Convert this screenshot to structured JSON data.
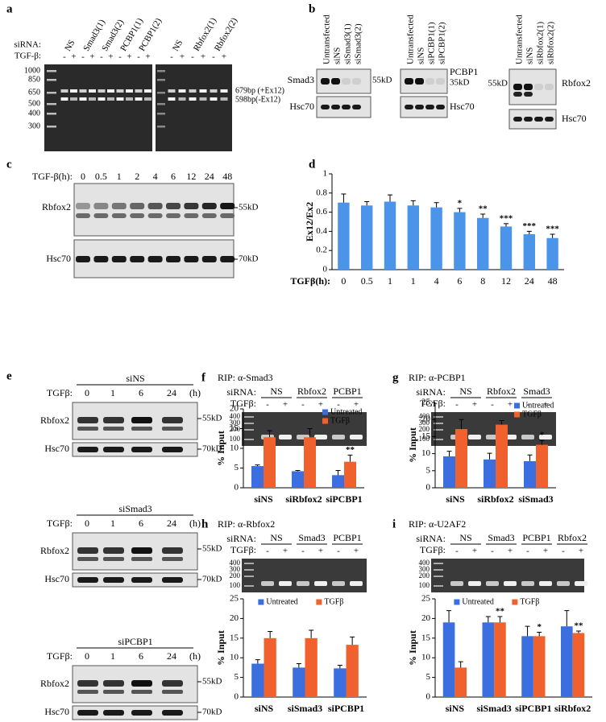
{
  "panels": {
    "a": {
      "letter": "a",
      "sirna": "siRNA:",
      "tgf": "TGF-β:",
      "lanes": [
        "NS",
        "Smad3(1)",
        "Smad3(2)",
        "PCBP1(1)",
        "PCBP1(2)",
        "NS",
        "Rbfox2(1)",
        "Rbfox2(2)"
      ],
      "signs": [
        "-",
        "+",
        "-",
        "+",
        "-",
        "+",
        "-",
        "+",
        "-",
        "+",
        "-",
        "+",
        "-",
        "+",
        "-",
        "+"
      ],
      "ladder": [
        "1000",
        "850",
        "650",
        "500",
        "400",
        "300"
      ],
      "bands": [
        "679bp (+Ex12)",
        "598bp(-Ex12)"
      ]
    },
    "b": {
      "letter": "b",
      "groups": [
        {
          "lanes": [
            "Untransfected",
            "siNS",
            "siSmad3(1)",
            "siSmad3(2)"
          ],
          "target": "Smad3",
          "size": "55kD",
          "control": "Hsc70"
        },
        {
          "lanes": [
            "Untransfected",
            "siNS",
            "siPCBP1(1)",
            "siPCBP1(2)"
          ],
          "target": "PCBP1",
          "size": "35kD",
          "control": "Hsc70"
        },
        {
          "lanes": [
            "Untransfected",
            "siNS",
            "siRbfox2(1)",
            "siRbfox2(2)"
          ],
          "target": "Rbfox2",
          "size": "55kD",
          "control": "Hsc70"
        }
      ]
    },
    "c": {
      "letter": "c",
      "tgf": "TGF-β(h):",
      "times": [
        "0",
        "0.5",
        "1",
        "2",
        "4",
        "6",
        "12",
        "24",
        "48"
      ],
      "target": "Rbfox2",
      "size": "55kD",
      "control": "Hsc70",
      "control_size": "70kD"
    },
    "d": {
      "letter": "d"
    },
    "e": {
      "letter": "e",
      "blocks": [
        {
          "sirna": "siNS",
          "tgf": "TGFβ:",
          "times": [
            "0",
            "1",
            "6",
            "24"
          ],
          "unit": "(h)",
          "target": "Rbfox2",
          "size": "55kD",
          "control": "Hsc70",
          "control_size": "70kD"
        },
        {
          "sirna": "siSmad3",
          "tgf": "TGFβ:",
          "times": [
            "0",
            "1",
            "6",
            "24"
          ],
          "unit": "(h)",
          "target": "Rbfox2",
          "size": "55kD",
          "control": "Hsc70",
          "control_size": "70kD"
        },
        {
          "sirna": "siPCBP1",
          "tgf": "TGFβ:",
          "times": [
            "0",
            "1",
            "6",
            "24"
          ],
          "unit": "(h)",
          "target": "Rbfox2",
          "size": "55kD",
          "control": "Hsc70",
          "control_size": "70kD"
        }
      ]
    },
    "f": {
      "letter": "f",
      "title": "RIP: α-Smad3",
      "sirna": "siRNA:",
      "groups": [
        "NS",
        "Rbfox2",
        "PCBP1"
      ],
      "tgf": "TGFβ:",
      "signs": [
        "-",
        "+",
        "-",
        "+",
        "-",
        "+"
      ],
      "ladder": [
        "400",
        "300",
        "200",
        "100"
      ]
    },
    "g": {
      "letter": "g",
      "title": "RIP: α-PCBP1",
      "sirna": "siRNA:",
      "groups": [
        "NS",
        "Rbfox2",
        "Smad3"
      ],
      "tgf": "TGFβ:",
      "signs": [
        "-",
        "+",
        "-",
        "+",
        "-",
        "+"
      ],
      "ladder": [
        "400",
        "300",
        "200",
        "100"
      ]
    },
    "h": {
      "letter": "h",
      "title": "RIP: α-Rbfox2",
      "sirna": "siRNA:",
      "groups": [
        "NS",
        "Smad3",
        "PCBP1"
      ],
      "tgf": "TGFβ:",
      "signs": [
        "-",
        "+",
        "-",
        "+",
        "-",
        "+"
      ],
      "ladder": [
        "400",
        "300",
        "200",
        "100"
      ]
    },
    "i": {
      "letter": "i",
      "title": "RIP: α-U2AF2",
      "sirna": "siRNA:",
      "groups": [
        "NS",
        "Smad3",
        "PCBP1",
        "Rbfox2"
      ],
      "tgf": "TGFβ:",
      "signs": [
        "-",
        "+",
        "-",
        "+",
        "-",
        "+",
        "-",
        "+"
      ],
      "ladder": [
        "400",
        "300",
        "200",
        "100"
      ]
    }
  },
  "chart_data": [
    {
      "type": "bar",
      "ylabel": "Ex12/Ex2",
      "xlabel": "TGFβ(h):",
      "categories": [
        "0",
        "0.5",
        "1",
        "1",
        "4",
        "6",
        "8",
        "12",
        "24",
        "48"
      ],
      "series": [
        {
          "color": "#4a95ea",
          "values": [
            0.7,
            0.67,
            0.71,
            0.67,
            0.65,
            0.6,
            0.54,
            0.45,
            0.37,
            0.33
          ],
          "errors": [
            0.09,
            0.04,
            0.07,
            0.05,
            0.05,
            0.04,
            0.04,
            0.03,
            0.03,
            0.04
          ],
          "significance": [
            null,
            null,
            null,
            null,
            null,
            "*",
            "**",
            "***",
            "***",
            "***"
          ]
        }
      ],
      "ylim": [
        0,
        1
      ],
      "yticks": [
        0,
        0.2,
        0.4,
        0.6,
        0.8,
        1
      ]
    },
    {
      "type": "bar",
      "ylabel": "% Input",
      "categories": [
        "siNS",
        "siRbfox2",
        "siPCBP1"
      ],
      "legend": "top-right",
      "series": [
        {
          "name": "Untreated",
          "color": "#3b6fe0",
          "values": [
            5.5,
            4.2,
            3.2
          ],
          "errors": [
            0.3,
            0.2,
            1.2
          ]
        },
        {
          "name": "TGFβ",
          "color": "#f0612d",
          "values": [
            12.8,
            12.8,
            6.6
          ],
          "errors": [
            1.7,
            2.2,
            1.7
          ],
          "significance": [
            null,
            null,
            "**"
          ]
        }
      ],
      "ylim": [
        0,
        20
      ],
      "yticks": [
        0,
        5,
        10,
        15,
        20
      ]
    },
    {
      "type": "bar",
      "ylabel": "% Input",
      "categories": [
        "siNS",
        "siRbfox2",
        "siSmad3"
      ],
      "legend": "top-right",
      "series": [
        {
          "name": "Untreated",
          "color": "#3b6fe0",
          "values": [
            9.2,
            8.3,
            7.8
          ],
          "errors": [
            1.5,
            1.8,
            1.8
          ]
        },
        {
          "name": "TGFβ",
          "color": "#f0612d",
          "values": [
            17.2,
            18.5,
            12.6
          ],
          "errors": [
            2.8,
            1.2,
            1.3
          ],
          "significance": [
            null,
            null,
            "*"
          ]
        }
      ],
      "ylim": [
        0,
        25
      ],
      "yticks": [
        0,
        5,
        10,
        15,
        20,
        25
      ]
    },
    {
      "type": "bar",
      "ylabel": "% Input",
      "categories": [
        "siNS",
        "siSmad3",
        "siPCBP1"
      ],
      "legend": "top",
      "series": [
        {
          "name": "Untreated",
          "color": "#3b6fe0",
          "values": [
            8.5,
            7.5,
            7.3
          ],
          "errors": [
            1.0,
            1.0,
            0.8
          ]
        },
        {
          "name": "TGFβ",
          "color": "#f0612d",
          "values": [
            15.0,
            15.0,
            13.3
          ],
          "errors": [
            1.7,
            2.0,
            2.0
          ]
        }
      ],
      "ylim": [
        0,
        25
      ],
      "yticks": [
        0,
        5,
        10,
        15,
        20,
        25
      ]
    },
    {
      "type": "bar",
      "ylabel": "% Input",
      "categories": [
        "siNS",
        "siSmad3",
        "siPCBP1",
        "siRbfox2"
      ],
      "legend": "top",
      "series": [
        {
          "name": "Untreated",
          "color": "#3b6fe0",
          "values": [
            19.0,
            19.0,
            15.5,
            18.0
          ],
          "errors": [
            3.0,
            1.5,
            2.5,
            4.0
          ]
        },
        {
          "name": "TGFβ",
          "color": "#f0612d",
          "values": [
            7.5,
            19.0,
            15.5,
            16.3
          ],
          "errors": [
            1.5,
            1.5,
            1.0,
            0.5
          ],
          "significance": [
            null,
            "**",
            "*",
            "**"
          ]
        }
      ],
      "ylim": [
        0,
        25
      ],
      "yticks": [
        0,
        5,
        10,
        15,
        20,
        25
      ]
    }
  ]
}
